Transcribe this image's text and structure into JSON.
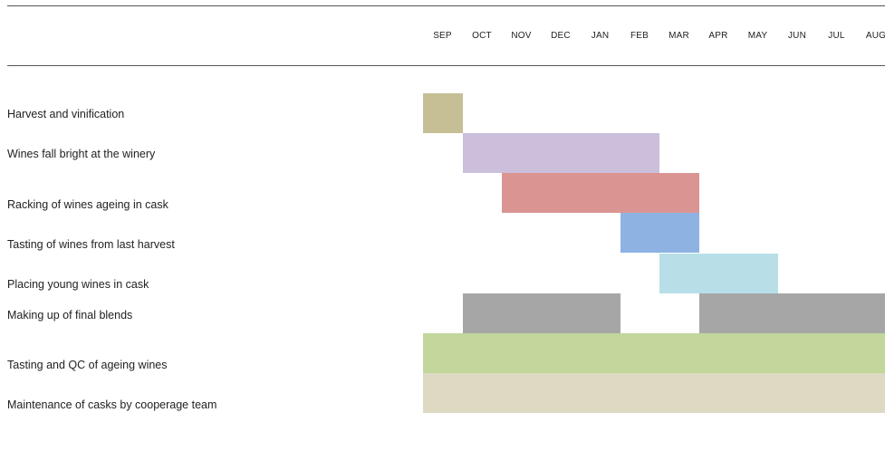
{
  "chart_data": {
    "type": "gantt",
    "months": [
      "SEP",
      "OCT",
      "NOV",
      "DEC",
      "JAN",
      "FEB",
      "MAR",
      "APR",
      "MAY",
      "JUN",
      "JUL",
      "AUG"
    ],
    "tasks": [
      {
        "label": "Harvest and vinification",
        "color": "#c6bf95",
        "segments": [
          [
            0,
            1
          ]
        ]
      },
      {
        "label": "Wines fall bright at the winery",
        "color": "#cbbfdc",
        "segments": [
          [
            1,
            6
          ]
        ]
      },
      {
        "label": "Racking of wines ageing in cask",
        "color": "#da9593",
        "segments": [
          [
            2,
            7
          ]
        ]
      },
      {
        "label": "Tasting of wines from last harvest",
        "color": "#8eb3e3",
        "segments": [
          [
            5,
            7
          ]
        ]
      },
      {
        "label": "Placing young wines in cask",
        "color": "#b8dfe8",
        "segments": [
          [
            6,
            9
          ]
        ]
      },
      {
        "label": "Making up of final blends",
        "color": "#a6a6a6",
        "segments": [
          [
            1,
            5
          ],
          [
            7,
            12
          ]
        ]
      },
      {
        "label": "Tasting and QC  of ageing wines",
        "color": "#c3d69b",
        "segments": [
          [
            0,
            12
          ]
        ]
      },
      {
        "label": "Maintenance of casks by cooperage team",
        "color": "#ddd9c3",
        "segments": [
          [
            0,
            12
          ]
        ]
      }
    ]
  }
}
